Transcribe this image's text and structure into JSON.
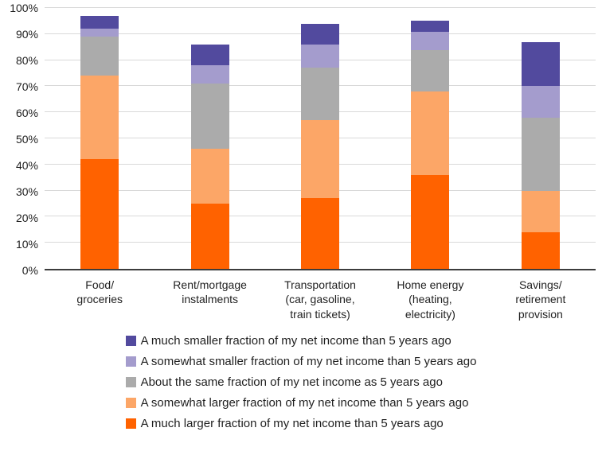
{
  "chart_data": {
    "type": "bar",
    "stacked": true,
    "title": "",
    "xlabel": "",
    "ylabel": "",
    "ylim": [
      0,
      100
    ],
    "ytick_step": 10,
    "ytick_labels": [
      "0%",
      "10%",
      "20%",
      "30%",
      "40%",
      "50%",
      "60%",
      "70%",
      "80%",
      "90%",
      "100%"
    ],
    "grid": true,
    "legend_position": "bottom",
    "categories": [
      [
        "Food/",
        "groceries"
      ],
      [
        "Rent/mortgage",
        "instalments"
      ],
      [
        "Transportation",
        "(car, gasoline,",
        "train tickets)"
      ],
      [
        "Home energy",
        "(heating,",
        "electricity)"
      ],
      [
        "Savings/",
        "retirement",
        "provision"
      ]
    ],
    "series": [
      {
        "name": "A much larger fraction of my net income than 5 years ago",
        "color": "#ff6200",
        "values": [
          42,
          25,
          27,
          36,
          14
        ]
      },
      {
        "name": "A somewhat larger fraction of my net income than 5 years ago",
        "color": "#fca667",
        "values": [
          32,
          21,
          30,
          32,
          16
        ]
      },
      {
        "name": "About the same fraction of my net income as 5 years ago",
        "color": "#ababab",
        "values": [
          15,
          25,
          20,
          16,
          28
        ]
      },
      {
        "name": "A somewhat smaller fraction of my net income than 5 years ago",
        "color": "#a49ccd",
        "values": [
          3,
          7,
          9,
          7,
          12
        ]
      },
      {
        "name": "A much smaller fraction of my net income than 5 years ago",
        "color": "#524a9e",
        "values": [
          5,
          8,
          8,
          4,
          17
        ]
      }
    ],
    "legend_order_top_to_bottom": [
      4,
      3,
      2,
      1,
      0
    ],
    "colors": {
      "gridline": "#d9d9d9",
      "axis_line": "#3c3c3c",
      "text": "#1f1f1f"
    }
  }
}
